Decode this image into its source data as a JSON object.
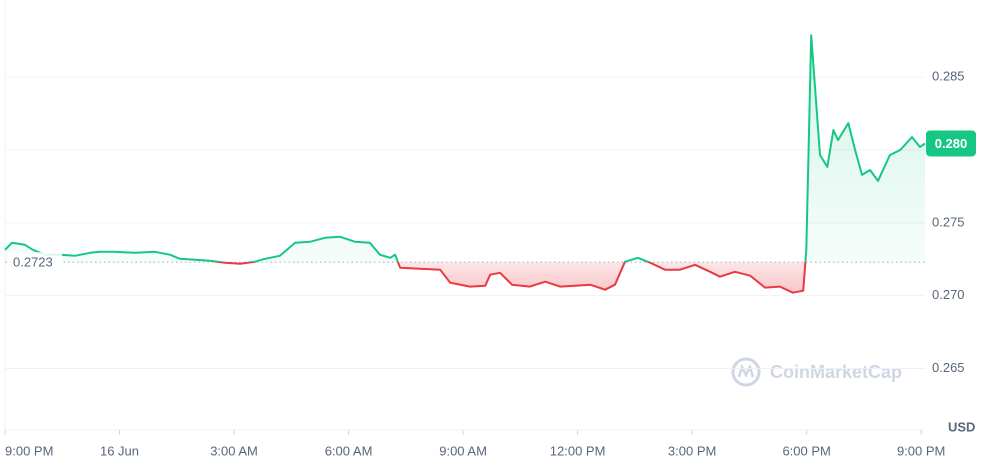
{
  "chart_data": {
    "type": "line",
    "currency": "USD",
    "watermark": "CoinMarketCap",
    "baseline": 0.2723,
    "last_price_label": "0.280",
    "up_color": "#16c784",
    "down_color": "#ea3943",
    "grid": true,
    "xlim": [
      0,
      24.1
    ],
    "ylim": [
      0.2616,
      0.2903
    ],
    "yticks": [
      0.265,
      {
        "value": 0.27,
        "label": "0.270"
      },
      0.275,
      {
        "value": 0.28,
        "label": "0.280"
      },
      0.285
    ],
    "xticks": [
      {
        "value": 0,
        "label": "9:00 PM"
      },
      {
        "value": 3,
        "label": "16 Jun"
      },
      {
        "value": 6,
        "label": "3:00 AM"
      },
      {
        "value": 9,
        "label": "6:00 AM"
      },
      {
        "value": 12,
        "label": "9:00 AM"
      },
      {
        "value": 15,
        "label": "12:00 PM"
      },
      {
        "value": 18,
        "label": "3:00 PM"
      },
      {
        "value": 21,
        "label": "6:00 PM"
      },
      {
        "value": 24,
        "label": "9:00 PM"
      }
    ],
    "x": [
      0,
      0.18,
      0.52,
      0.73,
      1.05,
      1.44,
      1.83,
      2.23,
      2.49,
      2.88,
      3.41,
      3.93,
      4.32,
      4.58,
      4.98,
      5.37,
      5.76,
      6.16,
      6.55,
      6.81,
      7.2,
      7.6,
      7.99,
      8.38,
      8.78,
      9.17,
      9.56,
      9.82,
      10.09,
      10.22,
      10.35,
      10.87,
      11.4,
      11.66,
      12.18,
      12.58,
      12.71,
      12.97,
      13.28,
      13.75,
      14.15,
      14.54,
      14.93,
      15.33,
      15.72,
      15.98,
      16.24,
      16.58,
      16.9,
      17.29,
      17.68,
      18.08,
      18.47,
      18.73,
      19.12,
      19.52,
      19.91,
      20.3,
      20.64,
      20.91,
      20.99,
      21.12,
      21.35,
      21.54,
      21.7,
      21.82,
      22.09,
      22.27,
      22.45,
      22.66,
      22.87,
      23.18,
      23.45,
      23.76,
      23.97,
      24.1
    ],
    "values": [
      0.27315,
      0.27363,
      0.27349,
      0.27315,
      0.27281,
      0.27281,
      0.27274,
      0.27294,
      0.27301,
      0.27301,
      0.27294,
      0.27301,
      0.27281,
      0.27253,
      0.27246,
      0.2724,
      0.27226,
      0.27219,
      0.27233,
      0.27253,
      0.27274,
      0.27363,
      0.2737,
      0.27397,
      0.27404,
      0.2737,
      0.27363,
      0.27281,
      0.2726,
      0.27281,
      0.27192,
      0.27185,
      0.27178,
      0.27089,
      0.27062,
      0.27068,
      0.27144,
      0.27157,
      0.27075,
      0.27062,
      0.27096,
      0.27062,
      0.27068,
      0.27075,
      0.27041,
      0.27075,
      0.27233,
      0.2726,
      0.27226,
      0.27178,
      0.27178,
      0.27212,
      0.27164,
      0.2713,
      0.27164,
      0.27137,
      0.27055,
      0.27062,
      0.2702,
      0.27034,
      0.27315,
      0.28788,
      0.27966,
      0.27884,
      0.28137,
      0.28068,
      0.28185,
      0.28,
      0.27829,
      0.27863,
      0.27788,
      0.27966,
      0.28,
      0.28089,
      0.28021,
      0.28045
    ]
  }
}
